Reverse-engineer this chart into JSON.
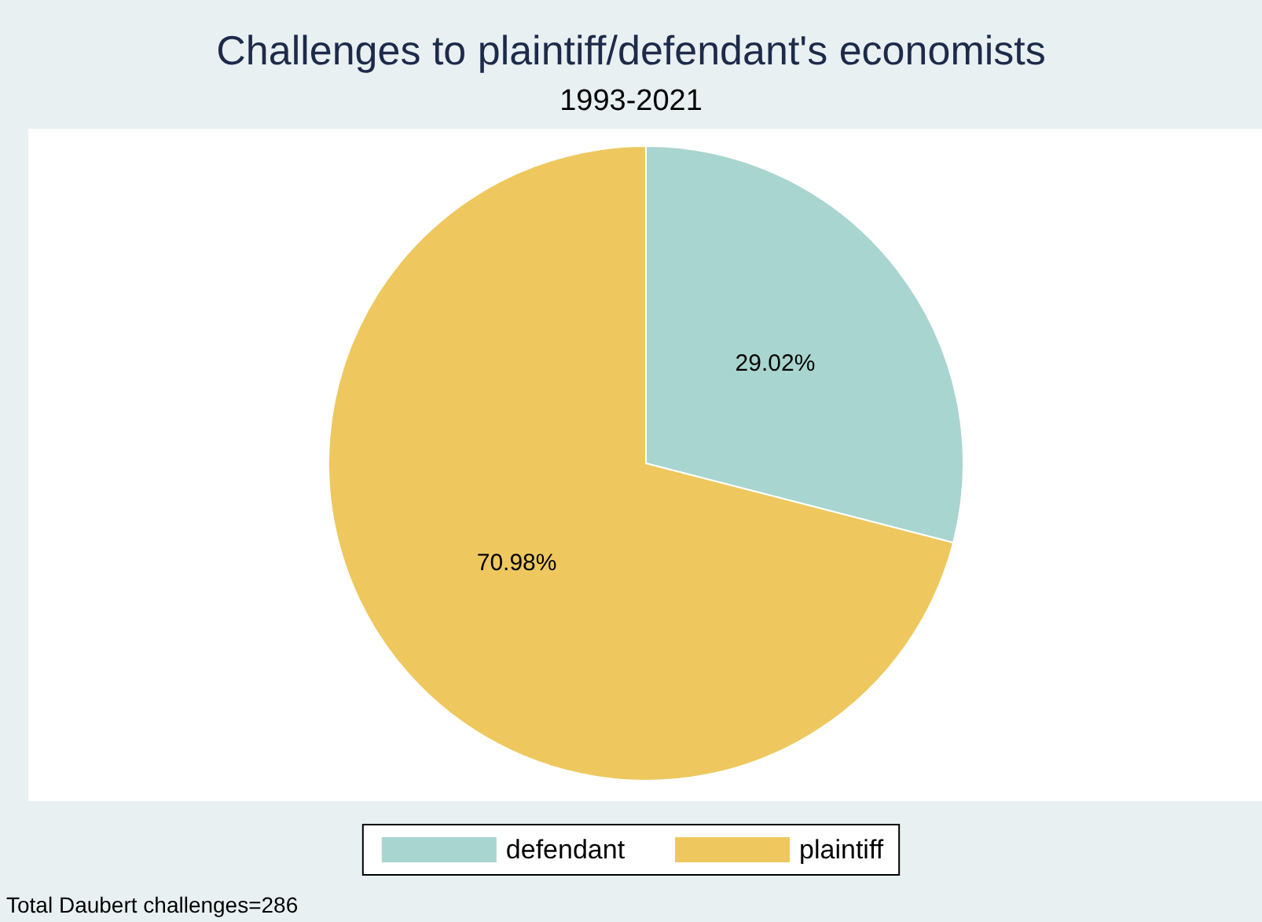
{
  "chart_data": {
    "type": "pie",
    "title": "Challenges to plaintiff/defendant's economists",
    "subtitle": "1993-2021",
    "categories": [
      "defendant",
      "plaintiff"
    ],
    "values": [
      29.02,
      70.98
    ],
    "value_labels": [
      "29.02%",
      "70.98%"
    ],
    "colors": [
      "#a8d5cf",
      "#eec85e"
    ],
    "legend": "bottom",
    "annotations": [
      "Total Daubert challenges=286"
    ]
  }
}
